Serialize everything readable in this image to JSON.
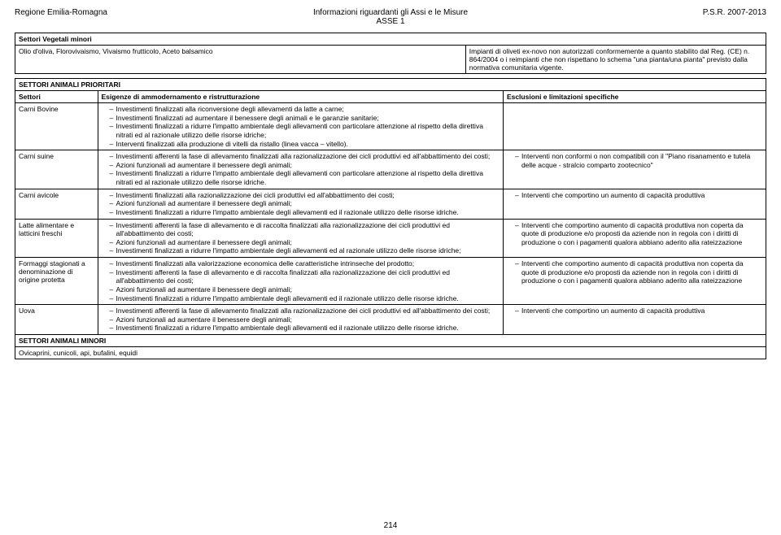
{
  "header": {
    "left": "Regione Emilia-Romagna",
    "center_line1": "Informazioni riguardanti gli Assi e le Misure",
    "center_line2": "ASSE 1",
    "right": "P.S.R. 2007-2013"
  },
  "table1": {
    "title": "Settori Vegetali minori",
    "left_cell": "Olio d'oliva, Florovivaismo, Vivaismo frutticolo, Aceto balsamico",
    "right_cell": "Impianti di oliveti ex-novo non autorizzati conformemente a quanto stabilito dal Reg. (CE) n. 864/2004 o i reimpianti che non rispettano lo schema \"una pianta/una pianta\" previsto dalla normativa comunitaria vigente."
  },
  "table2": {
    "title": "SETTORI ANIMALI PRIORITARI",
    "head_col1": "Settori",
    "head_col2": "Esigenze di ammodernamento e ristrutturazione",
    "head_col3": "Esclusioni e limitazioni specifiche",
    "rows": [
      {
        "sector": "Carni Bovine",
        "needs": [
          "Investimenti finalizzati alla riconversione degli allevamenti da latte a carne;",
          "Investimenti finalizzati ad aumentare il benessere degli animali e le garanzie sanitarie;",
          "Investimenti finalizzati a ridurre l'impatto ambientale degli allevamenti con particolare attenzione al rispetto della direttiva nitrati ed al razionale utilizzo delle risorse idriche;",
          "Interventi finalizzati alla produzione di vitelli da ristallo (linea vacca – vitello)."
        ],
        "excl": []
      },
      {
        "sector": "Carni suine",
        "needs": [
          "Investimenti afferenti la fase di allevamento finalizzati alla razionalizzazione dei cicli produttivi ed all'abbattimento dei costi;",
          "Azioni funzionali ad aumentare il benessere degli animali;",
          "Investimenti finalizzati a ridurre l'impatto ambientale degli allevamenti con particolare attenzione al rispetto della direttiva nitrati ed al razionale utilizzo delle risorse idriche."
        ],
        "excl": [
          "Interventi non conformi o non compatibili con il \"Piano risanamento e tutela delle acque - stralcio comparto zootecnico\""
        ]
      },
      {
        "sector": "Carni avicole",
        "needs": [
          "Investimenti finalizzati alla razionalizzazione dei cicli produttivi ed all'abbattimento dei costi;",
          "Azioni funzionali ad aumentare il benessere degli animali;",
          "Investimenti finalizzati a ridurre l'impatto ambientale degli allevamenti ed il razionale utilizzo delle risorse idriche."
        ],
        "excl": [
          "Interventi che comportino un aumento di capacità produttiva"
        ]
      },
      {
        "sector": "Latte alimentare e latticini freschi",
        "needs": [
          "Investimenti afferenti la fase di allevamento e di raccolta finalizzati alla razionalizzazione dei cicli produttivi ed all'abbattimento dei costi;",
          "Azioni funzionali ad aumentare il benessere degli animali;",
          "Investimenti finalizzati a ridurre l'impatto ambientale degli allevamenti ed al razionale utilizzo delle risorse idriche;"
        ],
        "excl": [
          "Interventi che comportino aumento di capacità produttiva non coperta da quote di produzione e/o proposti da aziende non in regola con i diritti di produzione o con i pagamenti qualora abbiano aderito alla rateizzazione"
        ]
      },
      {
        "sector": "Formaggi stagionati a denominazione di origine protetta",
        "needs": [
          "Investimenti finalizzati alla valorizzazione economica delle caratteristiche intrinseche del prodotto;",
          "Investimenti afferenti la fase di allevamento e di raccolta finalizzati alla razionalizzazione dei cicli produttivi ed all'abbattimento dei costi;",
          "Azioni funzionali ad aumentare il benessere degli animali;",
          "Investimenti finalizzati a ridurre l'impatto ambientale degli allevamenti ed il razionale utilizzo delle risorse idriche."
        ],
        "excl": [
          "Interventi che comportino aumento di capacità produttiva non coperta da quote di produzione e/o proposti da aziende non in regola con i diritti di produzione o con i pagamenti qualora abbiano aderito alla rateizzazione"
        ]
      },
      {
        "sector": "Uova",
        "needs": [
          "Investimenti afferenti la fase di allevamento finalizzati alla razionalizzazione dei cicli produttivi ed all'abbattimento dei costi;",
          "Azioni funzionali ad aumentare il benessere degli animali;",
          "Investimenti finalizzati a ridurre l'impatto ambientale degli allevamenti ed il razionale utilizzo delle risorse idriche."
        ],
        "excl": [
          "Interventi che comportino un aumento di capacità produttiva"
        ]
      }
    ],
    "minor_title": "SETTORI ANIMALI MINORI",
    "minor_text": "Ovicaprini, cunicoli, api, bufalini, equidi"
  },
  "page_number": "214"
}
